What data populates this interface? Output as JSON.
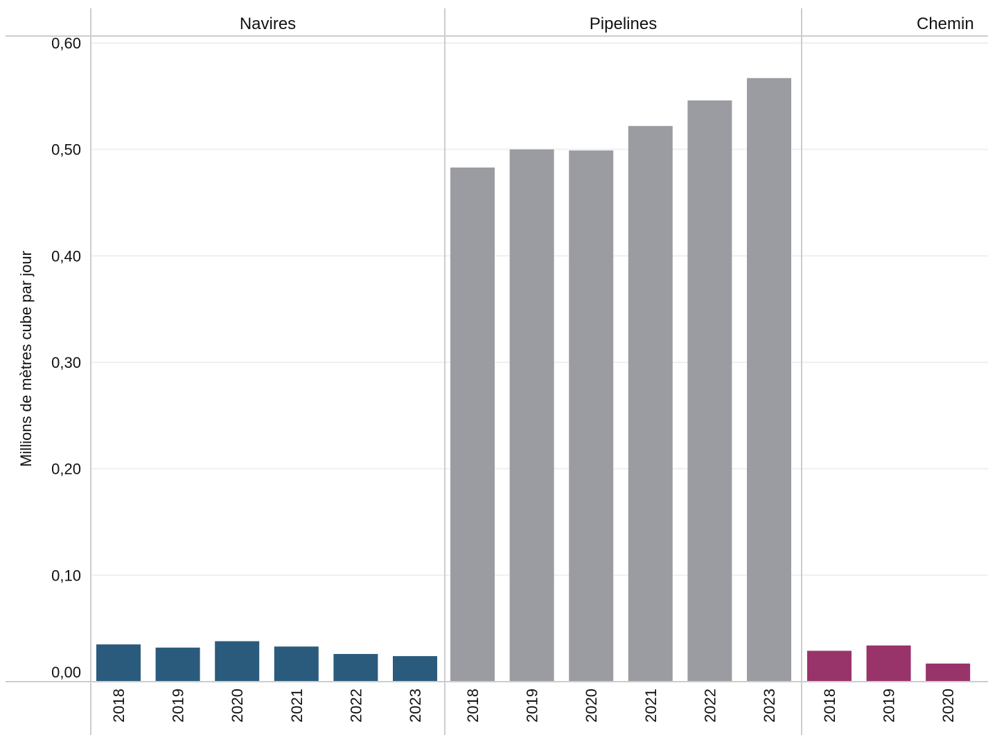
{
  "chart_data": {
    "type": "bar",
    "ylabel": "Millions de mètres cube par jour",
    "ylim": [
      -0.01,
      0.6
    ],
    "yticks": [
      {
        "value": 0.0,
        "label": "0,00"
      },
      {
        "value": 0.1,
        "label": "0,10"
      },
      {
        "value": 0.2,
        "label": "0,20"
      },
      {
        "value": 0.3,
        "label": "0,30"
      },
      {
        "value": 0.4,
        "label": "0,40"
      },
      {
        "value": 0.5,
        "label": "0,50"
      },
      {
        "value": 0.6,
        "label": "0,60"
      }
    ],
    "grid": true,
    "panels": [
      {
        "name": "Navires",
        "color": "#2a5b7c",
        "categories": [
          "2018",
          "2019",
          "2020",
          "2021",
          "2022",
          "2023"
        ],
        "values": [
          0.035,
          0.032,
          0.038,
          0.033,
          0.026,
          0.024
        ]
      },
      {
        "name": "Pipelines",
        "color": "#9b9ca2",
        "categories": [
          "2018",
          "2019",
          "2020",
          "2021",
          "2022",
          "2023"
        ],
        "values": [
          0.483,
          0.5,
          0.499,
          0.522,
          0.546,
          0.567
        ]
      },
      {
        "name": "Chemin",
        "color": "#983469",
        "categories": [
          "2018",
          "2019",
          "2020"
        ],
        "values": [
          0.029,
          0.034,
          0.017
        ]
      }
    ]
  }
}
